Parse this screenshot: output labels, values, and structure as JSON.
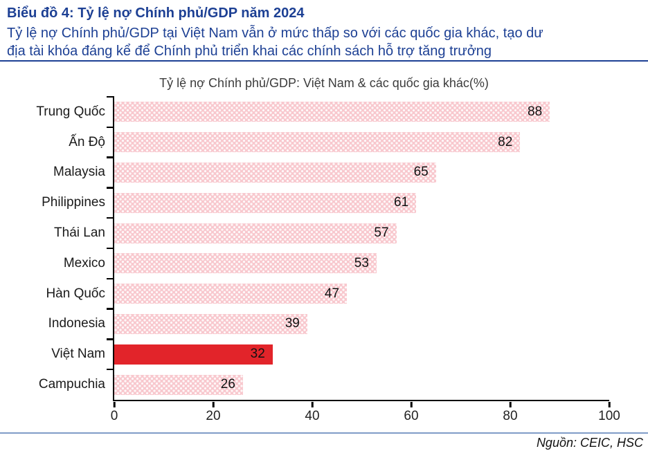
{
  "header": {
    "title": "Biểu đồ 4: Tỷ lệ nợ Chính phủ/GDP năm 2024",
    "subtitle_line1": "Tỷ lệ nợ Chính phủ/GDP tại Việt Nam vẫn ở mức thấp so với các quốc gia khác, tạo dư",
    "subtitle_line2": "địa tài khóa đáng kể để Chính phủ triển khai các chính sách hỗ trợ tăng trưởng"
  },
  "chart_data": {
    "type": "bar",
    "orientation": "horizontal",
    "title": "Tỷ lệ nợ Chính phủ/GDP: Việt Nam & các quốc gia khác(%)",
    "categories": [
      "Trung Quốc",
      "Ấn Độ",
      "Malaysia",
      "Philippines",
      "Thái Lan",
      "Mexico",
      "Hàn Quốc",
      "Indonesia",
      "Việt Nam",
      "Campuchia"
    ],
    "values": [
      88,
      82,
      65,
      61,
      57,
      53,
      47,
      39,
      32,
      26
    ],
    "highlight_category": "Việt Nam",
    "xlim": [
      0,
      100
    ],
    "x_ticks": [
      0,
      20,
      40,
      60,
      80,
      100
    ],
    "grid": false,
    "legend": "none",
    "value_labels": "inside-end",
    "bar_color": "#f8c8ce",
    "bar_pattern": "white-dots",
    "highlight_color": "#e2242a"
  },
  "footer": {
    "source": "Nguồn: CEIC, HSC"
  },
  "colors": {
    "heading_navy": "#1d4094",
    "divider_blue": "#7f9cc7",
    "axis_black": "#000000",
    "label_text": "#1a1a1a"
  }
}
